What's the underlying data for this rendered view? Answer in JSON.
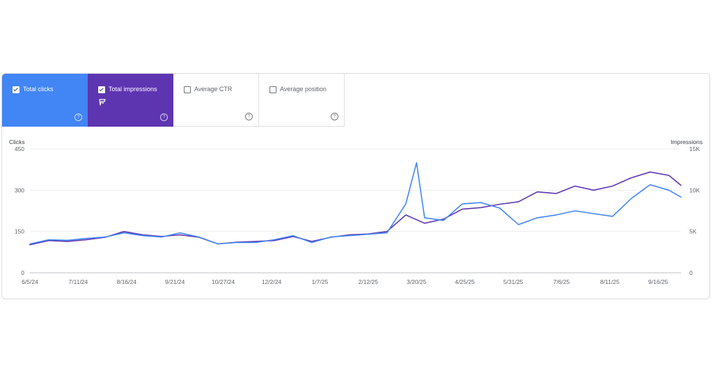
{
  "metrics": [
    {
      "label": "Total clicks",
      "checked": true,
      "color": "#4285f4"
    },
    {
      "label": "Total impressions",
      "checked": true,
      "color": "#5e35b1"
    },
    {
      "label": "Average CTR",
      "checked": false,
      "color": "#ffffff"
    },
    {
      "label": "Average position",
      "checked": false,
      "color": "#ffffff"
    }
  ],
  "help_glyph": "?",
  "chart_data": {
    "type": "line",
    "xlabel": "",
    "x_ticks": [
      "6/5/24",
      "7/11/24",
      "8/16/24",
      "9/21/24",
      "10/27/24",
      "12/2/24",
      "1/7/25",
      "2/12/25",
      "3/20/25",
      "4/25/25",
      "5/31/25",
      "7/6/25",
      "8/11/25",
      "9/16/25"
    ],
    "x_range": [
      "6/5/24",
      "10/3/25"
    ],
    "left_axis": {
      "label": "Clicks",
      "ticks": [
        "450",
        "300",
        "150",
        "0"
      ],
      "ylim": [
        0,
        450
      ]
    },
    "right_axis": {
      "label": "Impressions",
      "ticks": [
        "15K",
        "10K",
        "5K",
        "0"
      ],
      "ylim": [
        0,
        15000
      ]
    },
    "grid": true,
    "series": [
      {
        "metric": "clicks",
        "axis": "left",
        "color": "#4285f4",
        "points": [
          [
            "6/5/24",
            105
          ],
          [
            "6/19/24",
            120
          ],
          [
            "7/3/24",
            118
          ],
          [
            "7/17/24",
            125
          ],
          [
            "7/31/24",
            130
          ],
          [
            "8/14/24",
            145
          ],
          [
            "8/28/24",
            135
          ],
          [
            "9/11/24",
            130
          ],
          [
            "9/25/24",
            145
          ],
          [
            "10/9/24",
            130
          ],
          [
            "10/23/24",
            105
          ],
          [
            "11/6/24",
            110
          ],
          [
            "11/20/24",
            110
          ],
          [
            "12/4/24",
            120
          ],
          [
            "12/18/24",
            135
          ],
          [
            "1/1/25",
            110
          ],
          [
            "1/15/25",
            130
          ],
          [
            "1/29/25",
            135
          ],
          [
            "2/12/25",
            140
          ],
          [
            "2/26/25",
            145
          ],
          [
            "3/12/25",
            250
          ],
          [
            "3/20/25",
            400
          ],
          [
            "3/26/25",
            200
          ],
          [
            "4/9/25",
            190
          ],
          [
            "4/23/25",
            250
          ],
          [
            "5/7/25",
            255
          ],
          [
            "5/21/25",
            235
          ],
          [
            "6/4/25",
            175
          ],
          [
            "6/18/25",
            200
          ],
          [
            "7/2/25",
            210
          ],
          [
            "7/16/25",
            225
          ],
          [
            "7/30/25",
            215
          ],
          [
            "8/13/25",
            205
          ],
          [
            "8/27/25",
            270
          ],
          [
            "9/10/25",
            320
          ],
          [
            "9/24/25",
            300
          ],
          [
            "10/3/25",
            275
          ]
        ]
      },
      {
        "metric": "impressions",
        "axis": "right",
        "color": "#5e35b1",
        "points": [
          [
            "6/5/24",
            3400
          ],
          [
            "6/19/24",
            3900
          ],
          [
            "7/3/24",
            3800
          ],
          [
            "7/17/24",
            4000
          ],
          [
            "7/31/24",
            4300
          ],
          [
            "8/14/24",
            5000
          ],
          [
            "8/28/24",
            4600
          ],
          [
            "9/11/24",
            4400
          ],
          [
            "9/25/24",
            4600
          ],
          [
            "10/9/24",
            4300
          ],
          [
            "10/23/24",
            3500
          ],
          [
            "11/6/24",
            3700
          ],
          [
            "11/20/24",
            3800
          ],
          [
            "12/4/24",
            3900
          ],
          [
            "12/18/24",
            4400
          ],
          [
            "1/1/25",
            3800
          ],
          [
            "1/15/25",
            4300
          ],
          [
            "1/29/25",
            4600
          ],
          [
            "2/12/25",
            4700
          ],
          [
            "2/26/25",
            5000
          ],
          [
            "3/12/25",
            7000
          ],
          [
            "3/26/25",
            6000
          ],
          [
            "4/9/25",
            6500
          ],
          [
            "4/23/25",
            7700
          ],
          [
            "5/7/25",
            7900
          ],
          [
            "5/21/25",
            8300
          ],
          [
            "6/4/25",
            8600
          ],
          [
            "6/18/25",
            9800
          ],
          [
            "7/2/25",
            9600
          ],
          [
            "7/16/25",
            10500
          ],
          [
            "7/30/25",
            10000
          ],
          [
            "8/13/25",
            10500
          ],
          [
            "8/27/25",
            11500
          ],
          [
            "9/10/25",
            12200
          ],
          [
            "9/24/25",
            11800
          ],
          [
            "10/3/25",
            10600
          ]
        ]
      }
    ]
  }
}
